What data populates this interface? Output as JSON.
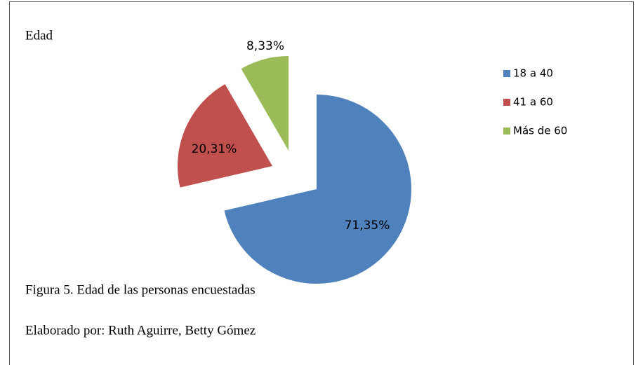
{
  "chart_data": {
    "type": "pie",
    "title": "Edad",
    "categories": [
      "18 a 40",
      "41 a 60",
      "Más de 60"
    ],
    "values": [
      71.35,
      20.31,
      8.33
    ],
    "value_labels": [
      "71,35%",
      "20,31%",
      "8,33%"
    ],
    "colors": [
      "#4f81bd",
      "#c0504d",
      "#9bbb59"
    ],
    "legend": "right",
    "caption": "Figura 5. Edad de las personas encuestadas",
    "source": "Elaborado por: Ruth Aguirre, Betty Gómez"
  }
}
